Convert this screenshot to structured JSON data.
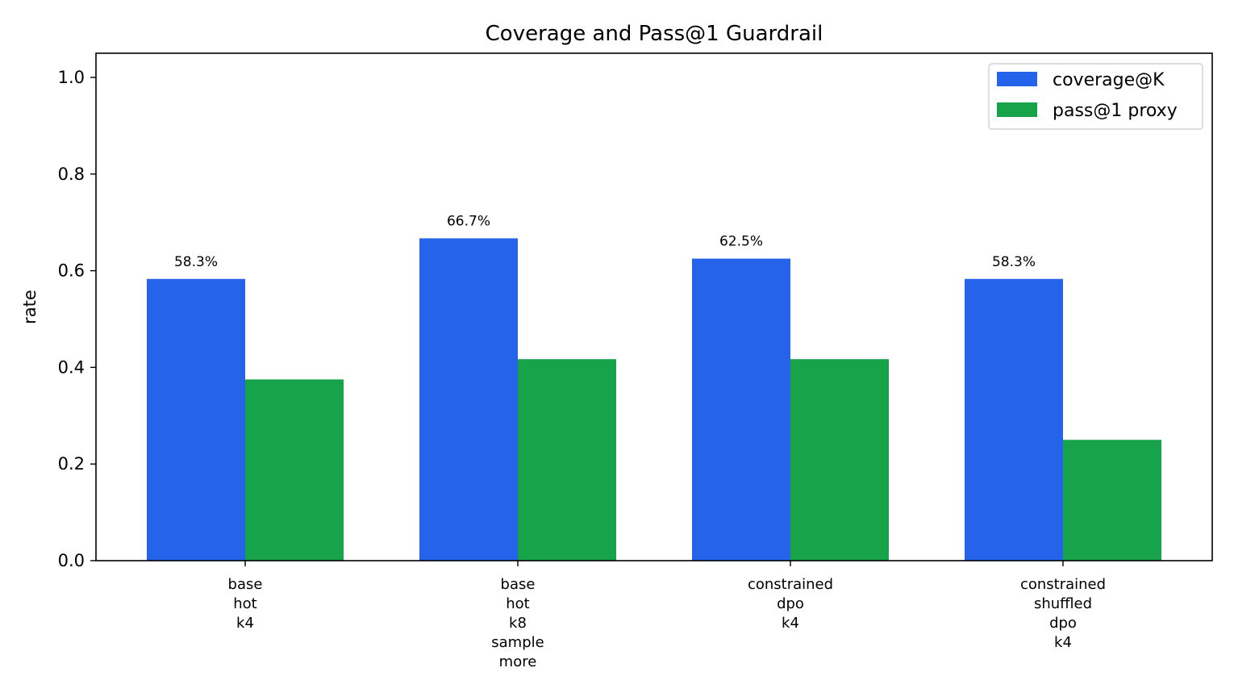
{
  "chart_data": {
    "type": "bar",
    "title": "Coverage and Pass@1 Guardrail",
    "xlabel": "",
    "ylabel": "rate",
    "ylim": [
      0,
      1.05
    ],
    "yticks": [
      "0.0",
      "0.2",
      "0.4",
      "0.6",
      "0.8",
      "1.0"
    ],
    "ytick_values": [
      0,
      0.2,
      0.4,
      0.6,
      0.8,
      1.0
    ],
    "categories": [
      [
        "base",
        "hot",
        "k4"
      ],
      [
        "base",
        "hot",
        "k8",
        "sample",
        "more"
      ],
      [
        "constrained",
        "dpo",
        "k4"
      ],
      [
        "constrained",
        "shuffled",
        "dpo",
        "k4"
      ]
    ],
    "series": [
      {
        "name": "coverage@K",
        "color": "#2563eb",
        "values": [
          0.583,
          0.667,
          0.625,
          0.583
        ],
        "labels": [
          "58.3%",
          "66.7%",
          "62.5%",
          "58.3%"
        ]
      },
      {
        "name": "pass@1 proxy",
        "color": "#16a34a",
        "values": [
          0.375,
          0.417,
          0.417,
          0.25
        ]
      }
    ],
    "legend_position": "top-right",
    "grid": false
  }
}
